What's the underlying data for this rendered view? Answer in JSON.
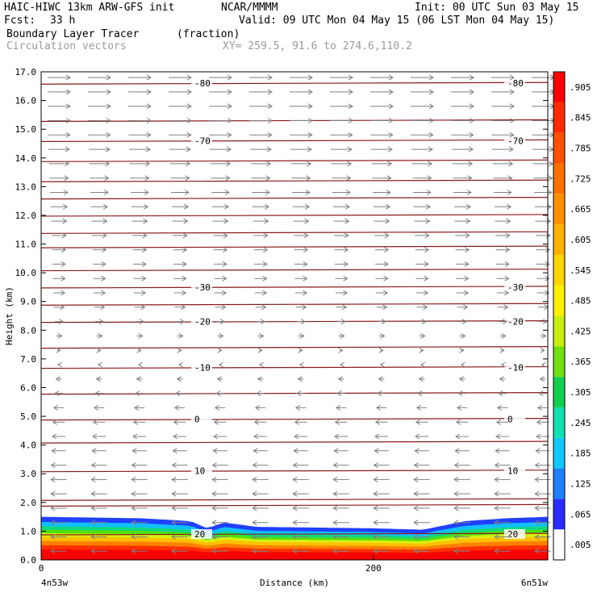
{
  "header": {
    "model": "HAIC-HIWC 13km ARW-GFS init",
    "org": "NCAR/MMMM",
    "init": "Init: 00 UTC Sun 03 May 15",
    "fcst_label": "Fcst:",
    "fcst_value": "33 h",
    "valid": "Valid: 09 UTC Mon 04 May 15 (06 LST Mon 04 May 15)",
    "field_name": "Boundary Layer Tracer",
    "field_units": "(fraction)",
    "vector_label": "Circulation vectors",
    "xy_label": "XY= 259.5, 91.6 to 274.6,110.2"
  },
  "chart_data": {
    "type": "heatmap",
    "title": "Boundary Layer Tracer",
    "xlabel": "Distance (km)",
    "ylabel": "Height (km)",
    "xlim": [
      0,
      305
    ],
    "ylim": [
      0,
      17
    ],
    "x_ticks": [
      0,
      200
    ],
    "y_ticks": [
      "0.0",
      "1.0",
      "2.0",
      "3.0",
      "4.0",
      "5.0",
      "6.0",
      "7.0",
      "8.0",
      "9.0",
      "10.0",
      "11.0",
      "12.0",
      "13.0",
      "14.0",
      "15.0",
      "16.0",
      "17.0"
    ],
    "x_endpoint_labels": {
      "left": "4n53w",
      "right": "6n51w"
    },
    "colorbar": {
      "labels": [
        ".005",
        ".065",
        ".125",
        ".185",
        ".245",
        ".305",
        ".365",
        ".425",
        ".485",
        ".545",
        ".605",
        ".665",
        ".725",
        ".785",
        ".845",
        ".905"
      ],
      "colors": [
        "#ffffff",
        "#2b2bff",
        "#1e7fff",
        "#10c8ff",
        "#10e0b0",
        "#10d050",
        "#70e010",
        "#c8ee10",
        "#fff000",
        "#ffd400",
        "#ffb000",
        "#ff9000",
        "#ff7000",
        "#ff5000",
        "#ff2a00",
        "#ff0000"
      ]
    },
    "temperature_contours": {
      "color": "#8b1a1a",
      "levels": [
        {
          "label": "-80",
          "height_km": 16.6
        },
        {
          "label": "-70",
          "height_km": 14.6
        },
        {
          "label": "-30",
          "height_km": 9.5
        },
        {
          "label": "-20",
          "height_km": 8.3
        },
        {
          "label": "-10",
          "height_km": 6.7
        },
        {
          "label": "0",
          "height_km": 4.9
        },
        {
          "label": "10",
          "height_km": 3.1
        },
        {
          "label": "20",
          "height_km": 0.9
        }
      ],
      "unlabeled_heights_km": [
        15.3,
        13.9,
        13.2,
        12.6,
        12.0,
        11.4,
        10.9,
        10.1,
        8.9,
        7.4,
        5.8,
        4.1,
        2.1,
        1.9
      ]
    },
    "boundary_layer_top_km": [
      {
        "x": 0,
        "top": 1.5
      },
      {
        "x": 60,
        "top": 1.45
      },
      {
        "x": 90,
        "top": 1.35
      },
      {
        "x": 100,
        "top": 1.1
      },
      {
        "x": 110,
        "top": 1.3
      },
      {
        "x": 130,
        "top": 1.15
      },
      {
        "x": 200,
        "top": 1.1
      },
      {
        "x": 230,
        "top": 1.05
      },
      {
        "x": 255,
        "top": 1.35
      },
      {
        "x": 280,
        "top": 1.45
      },
      {
        "x": 305,
        "top": 1.5
      }
    ],
    "vectors": {
      "color": "#808080",
      "description_levels": [
        {
          "height_km": 16.6,
          "u": 1.0
        },
        {
          "height_km": 15.0,
          "u": 1.0
        },
        {
          "height_km": 13.0,
          "u": 0.8
        },
        {
          "height_km": 11.0,
          "u": 0.6
        },
        {
          "height_km": 9.0,
          "u": 0.5
        },
        {
          "height_km": 7.5,
          "u": 0.2
        },
        {
          "height_km": 6.5,
          "u": -0.2
        },
        {
          "height_km": 5.0,
          "u": -0.5
        },
        {
          "height_km": 3.0,
          "u": -0.7
        },
        {
          "height_km": 1.0,
          "u": -0.7
        }
      ]
    }
  }
}
